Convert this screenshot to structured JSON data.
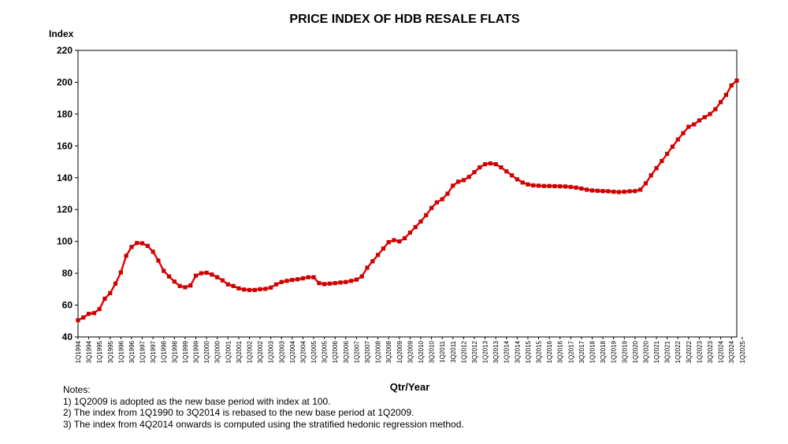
{
  "chart_data": {
    "type": "line",
    "title": "PRICE INDEX OF HDB RESALE FLATS",
    "ylabel": "Index",
    "xlabel": "Qtr/Year",
    "ylim": [
      40,
      220
    ],
    "yticks": [
      40,
      60,
      80,
      100,
      120,
      140,
      160,
      180,
      200,
      220
    ],
    "grid": false,
    "legend": "none",
    "line_color": "#e60000",
    "marker_color": "#cc0000",
    "x_tick_labels": [
      "1Q1994",
      "3Q1994",
      "1Q1995",
      "3Q1995",
      "1Q1996",
      "3Q1996",
      "1Q1997",
      "3Q1997",
      "1Q1998",
      "3Q1998",
      "1Q1999",
      "3Q1999",
      "1Q2000",
      "3Q2000",
      "1Q2001",
      "3Q2001",
      "1Q2002",
      "3Q2002",
      "1Q2003",
      "3Q2003",
      "1Q2004",
      "3Q2004",
      "1Q2005",
      "3Q2005",
      "1Q2006",
      "3Q2006",
      "1Q2007",
      "3Q2007",
      "1Q2008",
      "3Q2008",
      "1Q2009",
      "3Q2009",
      "1Q2010",
      "3Q2010",
      "1Q2011",
      "3Q2011",
      "1Q2012",
      "3Q2012",
      "1Q2013",
      "3Q2013",
      "1Q2014",
      "3Q2014",
      "1Q2015",
      "3Q2015",
      "1Q2016",
      "3Q2016",
      "1Q2017",
      "3Q2017",
      "1Q2018",
      "3Q2018",
      "1Q2019",
      "3Q2019",
      "1Q2020",
      "3Q2020",
      "1Q2021",
      "3Q2021",
      "1Q2022",
      "3Q2022",
      "1Q2023",
      "3Q2023",
      "1Q2024",
      "3Q2024",
      "1Q2025"
    ],
    "series": [
      {
        "values": [
          50.5,
          52.2,
          54.5,
          55,
          57.5,
          64,
          67.5,
          73.5,
          80.5,
          91,
          96.5,
          99,
          98.8,
          97.2,
          93.5,
          88,
          81.5,
          78,
          74.8,
          72,
          71.2,
          72.3,
          78.5,
          80,
          80.3,
          79.2,
          77.5,
          75.5,
          73,
          72,
          70.5,
          69.8,
          69.5,
          69.5,
          70,
          70.2,
          71,
          73,
          74.5,
          75.2,
          75.8,
          76.2,
          76.8,
          77.5,
          77.5,
          73.8,
          73.2,
          73.5,
          73.8,
          74.2,
          74.5,
          75.2,
          76,
          78,
          83.5,
          87.5,
          91.5,
          95.5,
          99.5,
          100.8,
          100,
          102,
          105.5,
          109,
          112.5,
          116.5,
          121,
          124.5,
          126.5,
          130,
          135,
          137.5,
          138.5,
          140.5,
          143.5,
          146.5,
          148.5,
          149,
          148.5,
          146.5,
          144,
          141.5,
          139,
          137,
          135.8,
          135.2,
          135,
          134.8,
          134.8,
          134.7,
          134.6,
          134.5,
          134.2,
          133.8,
          133.2,
          132.5,
          132,
          131.8,
          131.6,
          131.5,
          131.2,
          131,
          131.2,
          131.5,
          131.6,
          132.5,
          136.5,
          141.5,
          146,
          150.5,
          155,
          159.5,
          164,
          168,
          172,
          173.5,
          176,
          178,
          180,
          183,
          187.5,
          192,
          198,
          201
        ]
      }
    ]
  },
  "notes": {
    "heading": "Notes:",
    "items": [
      "1) 1Q2009 is adopted as the new base period with index at 100.",
      "2) The index from 1Q1990 to 3Q2014 is rebased to the new base period at 1Q2009.",
      "3) The index from 4Q2014 onwards is computed using the stratified hedonic regression method."
    ]
  }
}
